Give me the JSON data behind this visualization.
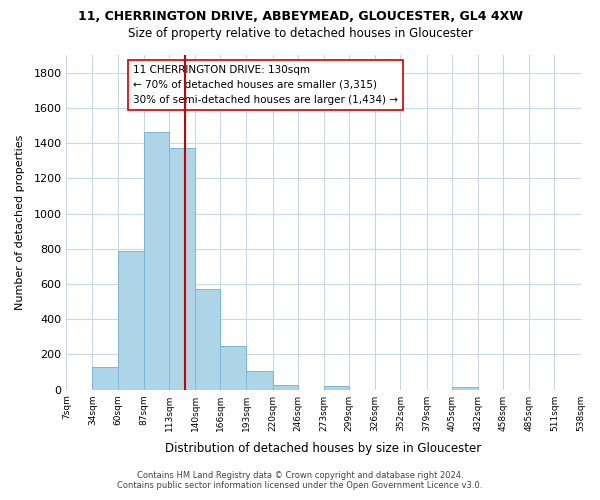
{
  "title_line1": "11, CHERRINGTON DRIVE, ABBEYMEAD, GLOUCESTER, GL4 4XW",
  "title_line2": "Size of property relative to detached houses in Gloucester",
  "xlabel": "Distribution of detached houses by size in Gloucester",
  "ylabel": "Number of detached properties",
  "bar_edges": [
    7,
    34,
    60,
    87,
    113,
    140,
    166,
    193,
    220,
    246,
    273,
    299,
    326,
    352,
    379,
    405,
    432,
    458,
    485,
    511,
    538
  ],
  "bar_heights": [
    0,
    130,
    790,
    1460,
    1370,
    570,
    250,
    105,
    25,
    0,
    20,
    0,
    0,
    0,
    0,
    13,
    0,
    0,
    0,
    0
  ],
  "bar_color": "#aed4e8",
  "bar_edgecolor": "#7ab8d4",
  "vline_x": 130,
  "vline_color": "#cc0000",
  "annotation_title": "11 CHERRINGTON DRIVE: 130sqm",
  "annotation_line1": "← 70% of detached houses are smaller (3,315)",
  "annotation_line2": "30% of semi-detached houses are larger (1,434) →",
  "ylim": [
    0,
    1900
  ],
  "yticks": [
    0,
    200,
    400,
    600,
    800,
    1000,
    1200,
    1400,
    1600,
    1800
  ],
  "xtick_labels": [
    "7sqm",
    "34sqm",
    "60sqm",
    "87sqm",
    "113sqm",
    "140sqm",
    "166sqm",
    "193sqm",
    "220sqm",
    "246sqm",
    "273sqm",
    "299sqm",
    "326sqm",
    "352sqm",
    "379sqm",
    "405sqm",
    "432sqm",
    "458sqm",
    "485sqm",
    "511sqm",
    "538sqm"
  ],
  "footer_line1": "Contains HM Land Registry data © Crown copyright and database right 2024.",
  "footer_line2": "Contains public sector information licensed under the Open Government Licence v3.0.",
  "background_color": "#ffffff",
  "grid_color": "#c8d8e8"
}
